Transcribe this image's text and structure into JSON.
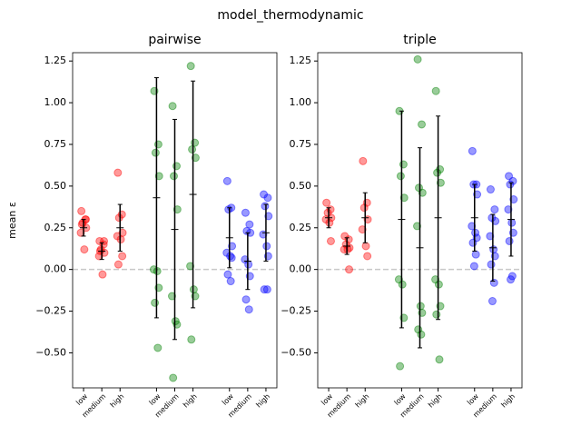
{
  "title": "model_thermodynamic",
  "chart_data": [
    {
      "type": "strip",
      "title": "pairwise",
      "title_color": "#800080",
      "ylabel": "mean ε",
      "ylim": [
        -0.71,
        1.3
      ],
      "yticks": [
        {
          "value": -0.5,
          "label": "−0.50"
        },
        {
          "value": -0.25,
          "label": "−0.25"
        },
        {
          "value": 0,
          "label": "0.00"
        },
        0.25,
        {
          "value": 0.5,
          "label": "0.50"
        },
        0.75,
        {
          "value": 1,
          "label": "1.00"
        },
        1.25
      ],
      "xlim": [
        -0.6,
        10.6
      ],
      "xticks": [
        {
          "value": 0,
          "label": "low"
        },
        {
          "value": 1,
          "label": "medium"
        },
        {
          "value": 2,
          "label": "high"
        },
        {
          "value": 4,
          "label": "low"
        },
        {
          "value": 5,
          "label": "medium"
        },
        {
          "value": 6,
          "label": "high"
        },
        {
          "value": 8,
          "label": "low"
        },
        {
          "value": 9,
          "label": "medium"
        },
        {
          "value": 10,
          "label": "high"
        }
      ],
      "hline": 0,
      "groups": [
        {
          "x": 0,
          "color": "#ff0000",
          "values": [
            0.35,
            0.3,
            0.28,
            0.25,
            0.22,
            0.12,
            0.3,
            0.27
          ],
          "mean": 0.25,
          "err": 0.05
        },
        {
          "x": 1,
          "color": "#ff0000",
          "values": [
            0.17,
            0.15,
            0.12,
            0.1,
            0.08,
            -0.03,
            0.17,
            0.11
          ],
          "mean": 0.11,
          "err": 0.05
        },
        {
          "x": 2,
          "color": "#ff0000",
          "values": [
            0.58,
            0.33,
            0.31,
            0.22,
            0.2,
            0.18,
            0.08,
            0.03
          ],
          "mean": 0.25,
          "err": 0.14
        },
        {
          "x": 4,
          "color": "#008000",
          "values": [
            1.07,
            0.75,
            0.7,
            0.56,
            0.0,
            -0.01,
            -0.11,
            -0.2,
            -0.47
          ],
          "mean": 0.43,
          "err": 0.72
        },
        {
          "x": 5,
          "color": "#008000",
          "values": [
            0.98,
            0.62,
            0.56,
            0.36,
            -0.16,
            -0.31,
            -0.33,
            -0.65
          ],
          "mean": 0.24,
          "err": 0.66
        },
        {
          "x": 6,
          "color": "#008000",
          "values": [
            1.22,
            0.76,
            0.72,
            0.67,
            0.02,
            -0.12,
            -0.16,
            -0.42
          ],
          "mean": 0.45,
          "err": 0.68
        },
        {
          "x": 8,
          "color": "#0000ff",
          "values": [
            0.53,
            0.37,
            0.36,
            0.14,
            0.1,
            0.08,
            0.07,
            -0.03,
            -0.07
          ],
          "mean": 0.19,
          "err": 0.18
        },
        {
          "x": 9,
          "color": "#0000ff",
          "values": [
            0.34,
            0.27,
            0.23,
            0.22,
            0.06,
            0.03,
            -0.04,
            -0.18,
            -0.24
          ],
          "mean": 0.05,
          "err": 0.17
        },
        {
          "x": 10,
          "color": "#0000ff",
          "values": [
            0.45,
            0.43,
            0.38,
            0.32,
            0.21,
            0.14,
            0.08,
            -0.12,
            -0.12
          ],
          "mean": 0.22,
          "err": 0.17
        }
      ]
    },
    {
      "type": "strip",
      "title": "triple",
      "title_color": "#ffa500",
      "ylim": [
        -0.71,
        1.3
      ],
      "yticks": [
        {
          "value": -0.5,
          "label": "−0.50"
        },
        {
          "value": -0.25,
          "label": "−0.25"
        },
        {
          "value": 0,
          "label": "0.00"
        },
        0.25,
        {
          "value": 0.5,
          "label": "0.50"
        },
        0.75,
        {
          "value": 1,
          "label": "1.00"
        },
        1.25
      ],
      "xlim": [
        -0.6,
        10.6
      ],
      "xticks": [
        {
          "value": 0,
          "label": "low"
        },
        {
          "value": 1,
          "label": "medium"
        },
        {
          "value": 2,
          "label": "high"
        },
        {
          "value": 4,
          "label": "low"
        },
        {
          "value": 5,
          "label": "medium"
        },
        {
          "value": 6,
          "label": "high"
        },
        {
          "value": 8,
          "label": "low"
        },
        {
          "value": 9,
          "label": "medium"
        },
        {
          "value": 10,
          "label": "high"
        }
      ],
      "hline": 0,
      "groups": [
        {
          "x": 0,
          "color": "#ff0000",
          "values": [
            0.4,
            0.36,
            0.34,
            0.31,
            0.3,
            0.28,
            0.17
          ],
          "mean": 0.31,
          "err": 0.06
        },
        {
          "x": 1,
          "color": "#ff0000",
          "values": [
            0.2,
            0.18,
            0.15,
            0.13,
            0.12,
            0.12,
            0.0
          ],
          "mean": 0.14,
          "err": 0.05
        },
        {
          "x": 2,
          "color": "#ff0000",
          "values": [
            0.65,
            0.4,
            0.37,
            0.3,
            0.24,
            0.14,
            0.08
          ],
          "mean": 0.31,
          "err": 0.15
        },
        {
          "x": 4,
          "color": "#008000",
          "values": [
            0.95,
            0.63,
            0.56,
            0.43,
            -0.06,
            -0.09,
            -0.29,
            -0.58
          ],
          "mean": 0.3,
          "err": 0.65
        },
        {
          "x": 5,
          "color": "#008000",
          "values": [
            1.26,
            0.87,
            0.49,
            0.46,
            0.26,
            -0.22,
            -0.26,
            -0.36,
            -0.39
          ],
          "mean": 0.13,
          "err": 0.6
        },
        {
          "x": 6,
          "color": "#008000",
          "values": [
            1.07,
            0.6,
            0.58,
            0.52,
            -0.06,
            -0.09,
            -0.22,
            -0.27,
            -0.54
          ],
          "mean": 0.31,
          "err": 0.61
        },
        {
          "x": 8,
          "color": "#0000ff",
          "values": [
            0.71,
            0.51,
            0.51,
            0.45,
            0.26,
            0.22,
            0.19,
            0.16,
            0.09,
            0.02
          ],
          "mean": 0.31,
          "err": 0.2
        },
        {
          "x": 9,
          "color": "#0000ff",
          "values": [
            0.48,
            0.36,
            0.31,
            0.29,
            0.2,
            0.12,
            0.08,
            0.03,
            -0.08,
            -0.19
          ],
          "mean": 0.13,
          "err": 0.2
        },
        {
          "x": 10,
          "color": "#0000ff",
          "values": [
            0.56,
            0.53,
            0.51,
            0.42,
            0.36,
            0.28,
            0.22,
            0.17,
            -0.04,
            -0.06
          ],
          "mean": 0.3,
          "err": 0.22
        }
      ]
    }
  ]
}
